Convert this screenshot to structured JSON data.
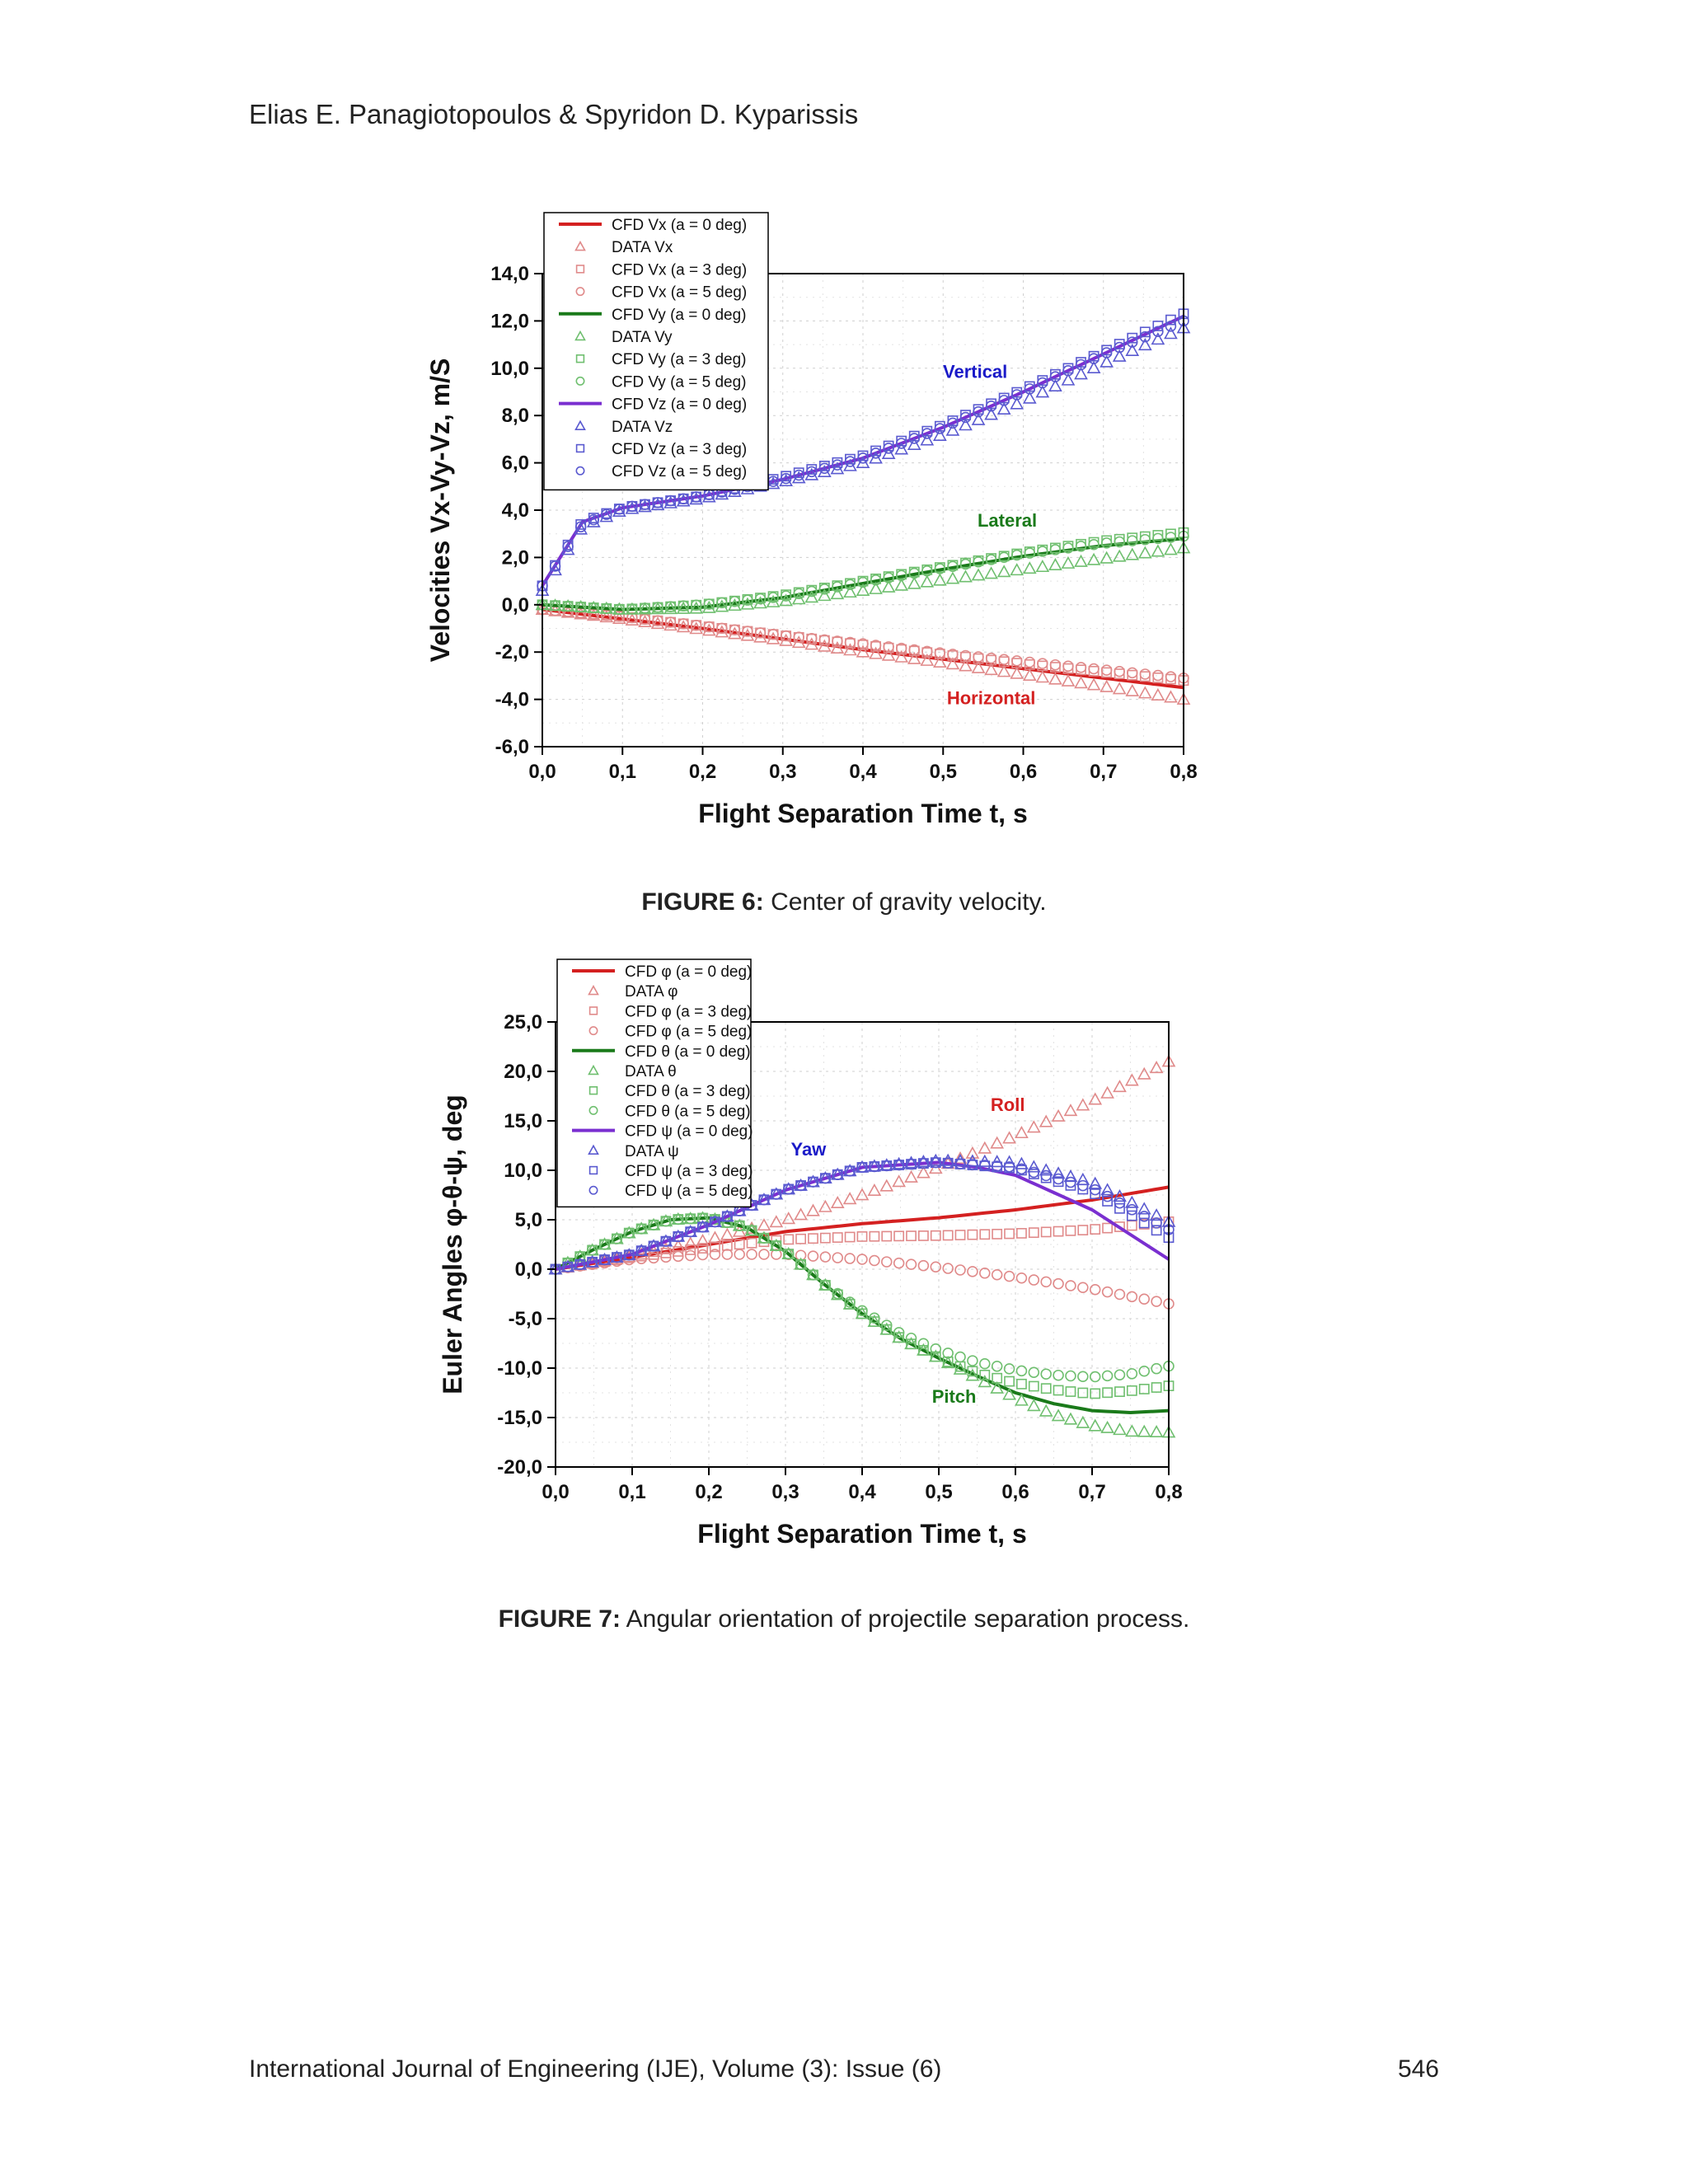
{
  "header": {
    "authors": "Elias E. Panagiotopoulos & Spyridon D. Kyparissis"
  },
  "footer": {
    "journal": "International Journal of Engineering (IJE), Volume (3): Issue (6)",
    "page": "546"
  },
  "figures": [
    {
      "label": "FIGURE 6:",
      "caption": "Center of gravity velocity."
    },
    {
      "label": "FIGURE 7:",
      "caption": "Angular orientation of projectile separation process."
    }
  ],
  "chart_data": [
    {
      "type": "scatter",
      "xlabel": "Flight Separation Time t, s",
      "ylabel": "Velocities Vx-Vy-Vz, m/S",
      "xlim": [
        0,
        0.8
      ],
      "ylim": [
        -6,
        14
      ],
      "xticks": [
        "0,0",
        "0,1",
        "0,2",
        "0,3",
        "0,4",
        "0,5",
        "0,6",
        "0,7",
        "0,8"
      ],
      "yticks": [
        "-6,0",
        "-4,0",
        "-2,0",
        "0,0",
        "2,0",
        "4,0",
        "6,0",
        "8,0",
        "10,0",
        "12,0",
        "14,0"
      ],
      "grid": true,
      "legend_position": "top-left",
      "annotations": [
        {
          "text": "Vertical",
          "x": 0.54,
          "y": 9.6,
          "color": "#1a1ac8"
        },
        {
          "text": "Lateral",
          "x": 0.58,
          "y": 3.3,
          "color": "#1a7a1a"
        },
        {
          "text": "Horizontal",
          "x": 0.56,
          "y": -4.2,
          "color": "#d42020"
        }
      ],
      "series": [
        {
          "name": "CFD Vx (a = 0 deg)",
          "marker": "line",
          "color": "#d42020",
          "x": [
            0,
            0.1,
            0.2,
            0.3,
            0.4,
            0.5,
            0.6,
            0.7,
            0.8
          ],
          "y": [
            -0.2,
            -0.6,
            -1.0,
            -1.45,
            -1.9,
            -2.3,
            -2.7,
            -3.1,
            -3.5
          ]
        },
        {
          "name": "DATA Vx",
          "marker": "triangle",
          "color": "#e08a8a",
          "x": [
            0,
            0.1,
            0.2,
            0.3,
            0.4,
            0.5,
            0.6,
            0.7,
            0.8
          ],
          "y": [
            -0.2,
            -0.6,
            -1.05,
            -1.5,
            -2.0,
            -2.45,
            -2.95,
            -3.45,
            -4.0
          ]
        },
        {
          "name": "CFD Vx (a = 3 deg)",
          "marker": "square",
          "color": "#e08a8a",
          "x": [
            0,
            0.1,
            0.2,
            0.3,
            0.4,
            0.5,
            0.6,
            0.7,
            0.8
          ],
          "y": [
            -0.2,
            -0.5,
            -0.9,
            -1.3,
            -1.7,
            -2.1,
            -2.5,
            -2.85,
            -3.2
          ]
        },
        {
          "name": "CFD Vx (a = 5 deg)",
          "marker": "circle",
          "color": "#e08a8a",
          "x": [
            0,
            0.1,
            0.2,
            0.3,
            0.4,
            0.5,
            0.6,
            0.7,
            0.8
          ],
          "y": [
            -0.2,
            -0.5,
            -0.9,
            -1.3,
            -1.65,
            -2.05,
            -2.4,
            -2.75,
            -3.1
          ]
        },
        {
          "name": "CFD Vy (a = 0 deg)",
          "marker": "line",
          "color": "#1a7a1a",
          "x": [
            0,
            0.1,
            0.2,
            0.3,
            0.4,
            0.5,
            0.6,
            0.7,
            0.8
          ],
          "y": [
            0.0,
            -0.2,
            -0.1,
            0.3,
            0.9,
            1.5,
            2.05,
            2.5,
            2.8
          ]
        },
        {
          "name": "DATA Vy",
          "marker": "triangle",
          "color": "#6fbf6f",
          "x": [
            0,
            0.1,
            0.2,
            0.3,
            0.4,
            0.5,
            0.6,
            0.7,
            0.8
          ],
          "y": [
            0.0,
            -0.2,
            -0.15,
            0.15,
            0.6,
            1.05,
            1.5,
            1.95,
            2.4
          ]
        },
        {
          "name": "CFD Vy (a = 3 deg)",
          "marker": "square",
          "color": "#6fbf6f",
          "x": [
            0,
            0.1,
            0.2,
            0.3,
            0.4,
            0.5,
            0.6,
            0.7,
            0.8
          ],
          "y": [
            0.0,
            -0.2,
            0.0,
            0.4,
            1.0,
            1.6,
            2.2,
            2.7,
            3.05
          ]
        },
        {
          "name": "CFD Vy (a = 5 deg)",
          "marker": "circle",
          "color": "#6fbf6f",
          "x": [
            0,
            0.1,
            0.2,
            0.3,
            0.4,
            0.5,
            0.6,
            0.7,
            0.8
          ],
          "y": [
            0.0,
            -0.2,
            0.0,
            0.35,
            0.95,
            1.55,
            2.15,
            2.6,
            2.9
          ]
        },
        {
          "name": "CFD Vz (a = 0 deg)",
          "marker": "line",
          "color": "#7a2fd0",
          "x": [
            0,
            0.05,
            0.1,
            0.2,
            0.3,
            0.4,
            0.5,
            0.6,
            0.7,
            0.8
          ],
          "y": [
            0.8,
            3.5,
            4.1,
            4.6,
            5.3,
            6.2,
            7.5,
            9.0,
            10.6,
            12.2
          ]
        },
        {
          "name": "DATA Vz",
          "marker": "triangle",
          "color": "#5a5ad0",
          "x": [
            0,
            0.05,
            0.1,
            0.2,
            0.3,
            0.4,
            0.5,
            0.6,
            0.7,
            0.8
          ],
          "y": [
            0.6,
            3.3,
            4.0,
            4.5,
            5.2,
            6.0,
            7.2,
            8.6,
            10.2,
            11.7
          ]
        },
        {
          "name": "CFD Vz (a = 3 deg)",
          "marker": "square",
          "color": "#5a5ad0",
          "x": [
            0,
            0.05,
            0.1,
            0.2,
            0.3,
            0.4,
            0.5,
            0.6,
            0.7,
            0.8
          ],
          "y": [
            0.8,
            3.5,
            4.1,
            4.6,
            5.4,
            6.3,
            7.6,
            9.1,
            10.7,
            12.3
          ]
        },
        {
          "name": "CFD Vz (a = 5 deg)",
          "marker": "circle",
          "color": "#5a5ad0",
          "x": [
            0,
            0.05,
            0.1,
            0.2,
            0.3,
            0.4,
            0.5,
            0.6,
            0.7,
            0.8
          ],
          "y": [
            0.8,
            3.4,
            4.1,
            4.6,
            5.3,
            6.2,
            7.5,
            9.0,
            10.6,
            12.0
          ]
        }
      ]
    },
    {
      "type": "scatter",
      "xlabel": "Flight Separation Time t, s",
      "ylabel": "Euler Angles φ-θ-ψ, deg",
      "xlim": [
        0,
        0.8
      ],
      "ylim": [
        -20,
        25
      ],
      "xticks": [
        "0,0",
        "0,1",
        "0,2",
        "0,3",
        "0,4",
        "0,5",
        "0,6",
        "0,7",
        "0,8"
      ],
      "yticks": [
        "-20,0",
        "-15,0",
        "-10,0",
        "-5,0",
        "0,0",
        "5,0",
        "10,0",
        "15,0",
        "20,0",
        "25,0"
      ],
      "grid": true,
      "legend_position": "top-left",
      "annotations": [
        {
          "text": "Roll",
          "x": 0.59,
          "y": 16.0,
          "color": "#d42020"
        },
        {
          "text": "Yaw",
          "x": 0.33,
          "y": 11.5,
          "color": "#1a1ac8"
        },
        {
          "text": "Pitch",
          "x": 0.52,
          "y": -13.5,
          "color": "#1a7a1a"
        }
      ],
      "series": [
        {
          "name": "CFD φ (a = 0 deg)",
          "marker": "line",
          "color": "#d42020",
          "x": [
            0,
            0.1,
            0.2,
            0.3,
            0.4,
            0.5,
            0.6,
            0.7,
            0.8
          ],
          "y": [
            0.0,
            1.2,
            2.5,
            3.8,
            4.6,
            5.2,
            6.0,
            7.0,
            8.3
          ]
        },
        {
          "name": "DATA φ",
          "marker": "triangle",
          "color": "#e08a8a",
          "x": [
            0,
            0.1,
            0.2,
            0.3,
            0.4,
            0.5,
            0.6,
            0.7,
            0.8
          ],
          "y": [
            0.0,
            1.3,
            3.0,
            5.0,
            7.5,
            10.3,
            13.5,
            17.0,
            21.0
          ]
        },
        {
          "name": "CFD φ (a = 3 deg)",
          "marker": "square",
          "color": "#e08a8a",
          "x": [
            0,
            0.1,
            0.2,
            0.3,
            0.4,
            0.5,
            0.6,
            0.7,
            0.8
          ],
          "y": [
            0.0,
            1.2,
            2.2,
            3.0,
            3.3,
            3.4,
            3.6,
            4.0,
            4.8
          ]
        },
        {
          "name": "CFD φ (a = 5 deg)",
          "marker": "circle",
          "color": "#e08a8a",
          "x": [
            0,
            0.1,
            0.2,
            0.3,
            0.4,
            0.5,
            0.6,
            0.7,
            0.8
          ],
          "y": [
            0.0,
            1.0,
            1.5,
            1.5,
            1.0,
            0.2,
            -0.8,
            -2.0,
            -3.5
          ]
        },
        {
          "name": "CFD θ (a = 0 deg)",
          "marker": "line",
          "color": "#1a7a1a",
          "x": [
            0,
            0.05,
            0.1,
            0.15,
            0.2,
            0.25,
            0.3,
            0.35,
            0.4,
            0.45,
            0.5,
            0.55,
            0.6,
            0.65,
            0.7,
            0.75,
            0.8
          ],
          "y": [
            0.0,
            2.0,
            3.8,
            5.0,
            5.2,
            4.2,
            1.8,
            -1.5,
            -4.5,
            -7.0,
            -9.0,
            -10.8,
            -12.5,
            -13.6,
            -14.3,
            -14.5,
            -14.3
          ]
        },
        {
          "name": "DATA θ",
          "marker": "triangle",
          "color": "#6fbf6f",
          "x": [
            0,
            0.05,
            0.1,
            0.15,
            0.2,
            0.25,
            0.3,
            0.35,
            0.4,
            0.45,
            0.5,
            0.55,
            0.6,
            0.65,
            0.7,
            0.75,
            0.8
          ],
          "y": [
            0.0,
            2.0,
            3.8,
            5.0,
            5.2,
            4.2,
            1.8,
            -1.5,
            -4.5,
            -7.0,
            -9.0,
            -11.0,
            -13.0,
            -14.7,
            -15.8,
            -16.4,
            -16.5
          ]
        },
        {
          "name": "CFD θ (a = 3 deg)",
          "marker": "square",
          "color": "#6fbf6f",
          "x": [
            0,
            0.05,
            0.1,
            0.15,
            0.2,
            0.25,
            0.3,
            0.35,
            0.4,
            0.45,
            0.5,
            0.55,
            0.6,
            0.65,
            0.7,
            0.75,
            0.8
          ],
          "y": [
            0.0,
            2.0,
            3.8,
            5.0,
            5.2,
            4.2,
            1.8,
            -1.5,
            -4.5,
            -7.0,
            -9.0,
            -10.5,
            -11.5,
            -12.2,
            -12.6,
            -12.3,
            -11.8
          ]
        },
        {
          "name": "CFD θ (a = 5 deg)",
          "marker": "circle",
          "color": "#6fbf6f",
          "x": [
            0,
            0.05,
            0.1,
            0.15,
            0.2,
            0.25,
            0.3,
            0.35,
            0.4,
            0.45,
            0.5,
            0.55,
            0.6,
            0.65,
            0.7,
            0.75,
            0.8
          ],
          "y": [
            0.0,
            2.0,
            3.8,
            5.0,
            5.2,
            4.2,
            1.8,
            -1.5,
            -4.2,
            -6.5,
            -8.2,
            -9.4,
            -10.2,
            -10.7,
            -10.9,
            -10.6,
            -9.8
          ]
        },
        {
          "name": "CFD ψ (a = 0 deg)",
          "marker": "line",
          "color": "#7a2fd0",
          "x": [
            0,
            0.1,
            0.2,
            0.3,
            0.4,
            0.5,
            0.55,
            0.6,
            0.7,
            0.8
          ],
          "y": [
            0.0,
            1.5,
            4.5,
            8.0,
            10.3,
            10.8,
            10.3,
            9.5,
            6.0,
            1.0
          ]
        },
        {
          "name": "DATA ψ",
          "marker": "triangle",
          "color": "#5a5ad0",
          "x": [
            0,
            0.1,
            0.2,
            0.3,
            0.4,
            0.5,
            0.6,
            0.7,
            0.8
          ],
          "y": [
            0.0,
            1.5,
            4.5,
            8.0,
            10.3,
            11.0,
            10.8,
            8.8,
            4.8
          ]
        },
        {
          "name": "CFD ψ (a = 3 deg)",
          "marker": "square",
          "color": "#5a5ad0",
          "x": [
            0,
            0.1,
            0.2,
            0.3,
            0.4,
            0.5,
            0.6,
            0.7,
            0.8
          ],
          "y": [
            0.0,
            1.5,
            4.5,
            8.0,
            10.3,
            10.8,
            10.2,
            7.8,
            3.2
          ]
        },
        {
          "name": "CFD ψ (a = 5 deg)",
          "marker": "circle",
          "color": "#5a5ad0",
          "x": [
            0,
            0.1,
            0.2,
            0.3,
            0.4,
            0.5,
            0.6,
            0.7,
            0.8
          ],
          "y": [
            0.0,
            1.5,
            4.5,
            8.0,
            10.3,
            10.8,
            10.3,
            8.2,
            4.0
          ]
        }
      ]
    }
  ]
}
